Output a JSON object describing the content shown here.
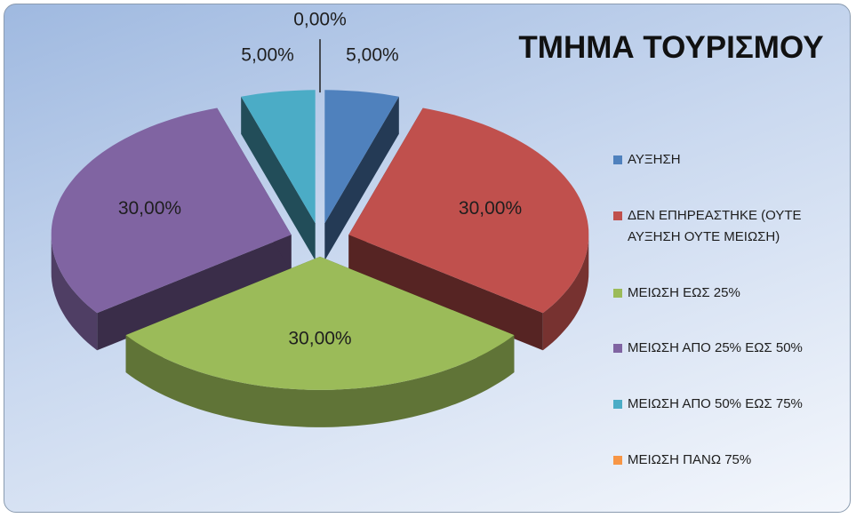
{
  "chart_data": {
    "type": "pie",
    "title": "ΤΜΗΜΑ ΤΟΥΡΙΣΜΟΥ",
    "categories": [
      "ΑΥΞΗΣΗ",
      "ΔΕΝ ΕΠΗΡΕΑΣΤΗΚΕ (ΟΥΤΕ ΑΥΞΗΣΗ ΟΥΤΕ ΜΕΙΩΣΗ)",
      "ΜΕΙΩΣΗ ΕΩΣ 25%",
      "ΜΕΙΩΣΗ ΑΠΟ 25% ΕΩΣ 50%",
      "ΜΕΙΩΣΗ ΑΠΟ 50% ΕΩΣ 75%",
      "ΜΕΙΩΣΗ ΠΑΝΩ 75%"
    ],
    "values": [
      5,
      30,
      30,
      30,
      5,
      0
    ],
    "value_labels": [
      "5,00%",
      "30,00%",
      "30,00%",
      "30,00%",
      "5,00%",
      "0,00%"
    ],
    "colors": [
      "#4f81bd",
      "#c0504d",
      "#9bbb59",
      "#8064a2",
      "#4bacc6",
      "#f79646"
    ],
    "legend": "right"
  }
}
